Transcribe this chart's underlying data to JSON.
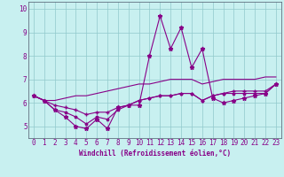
{
  "xlabel": "Windchill (Refroidissement éolien,°C)",
  "background_color": "#c8f0f0",
  "line_color": "#880088",
  "xlim": [
    -0.5,
    23.5
  ],
  "ylim": [
    4.5,
    10.3
  ],
  "yticks": [
    5,
    6,
    7,
    8,
    9,
    10
  ],
  "xticks": [
    0,
    1,
    2,
    3,
    4,
    5,
    6,
    7,
    8,
    9,
    10,
    11,
    12,
    13,
    14,
    15,
    16,
    17,
    18,
    19,
    20,
    21,
    22,
    23
  ],
  "series": [
    [
      6.3,
      6.1,
      5.7,
      5.4,
      5.0,
      4.9,
      5.3,
      4.9,
      5.8,
      5.9,
      5.9,
      8.0,
      9.7,
      8.3,
      9.2,
      7.5,
      8.3,
      6.2,
      6.0,
      6.1,
      6.2,
      6.3,
      6.4,
      6.8
    ],
    [
      6.3,
      6.1,
      5.7,
      5.6,
      5.4,
      5.1,
      5.4,
      5.3,
      5.7,
      5.9,
      6.1,
      6.2,
      6.3,
      6.3,
      6.4,
      6.4,
      6.1,
      6.3,
      6.4,
      6.4,
      6.4,
      6.4,
      6.4,
      6.8
    ],
    [
      6.3,
      6.1,
      5.9,
      5.8,
      5.7,
      5.5,
      5.6,
      5.6,
      5.8,
      5.9,
      6.1,
      6.2,
      6.3,
      6.3,
      6.4,
      6.4,
      6.1,
      6.3,
      6.4,
      6.5,
      6.5,
      6.5,
      6.5,
      6.8
    ],
    [
      6.3,
      6.1,
      6.1,
      6.2,
      6.3,
      6.3,
      6.4,
      6.5,
      6.6,
      6.7,
      6.8,
      6.8,
      6.9,
      7.0,
      7.0,
      7.0,
      6.8,
      6.9,
      7.0,
      7.0,
      7.0,
      7.0,
      7.1,
      7.1
    ]
  ],
  "tick_fontsize": 5.5,
  "xlabel_fontsize": 5.5
}
